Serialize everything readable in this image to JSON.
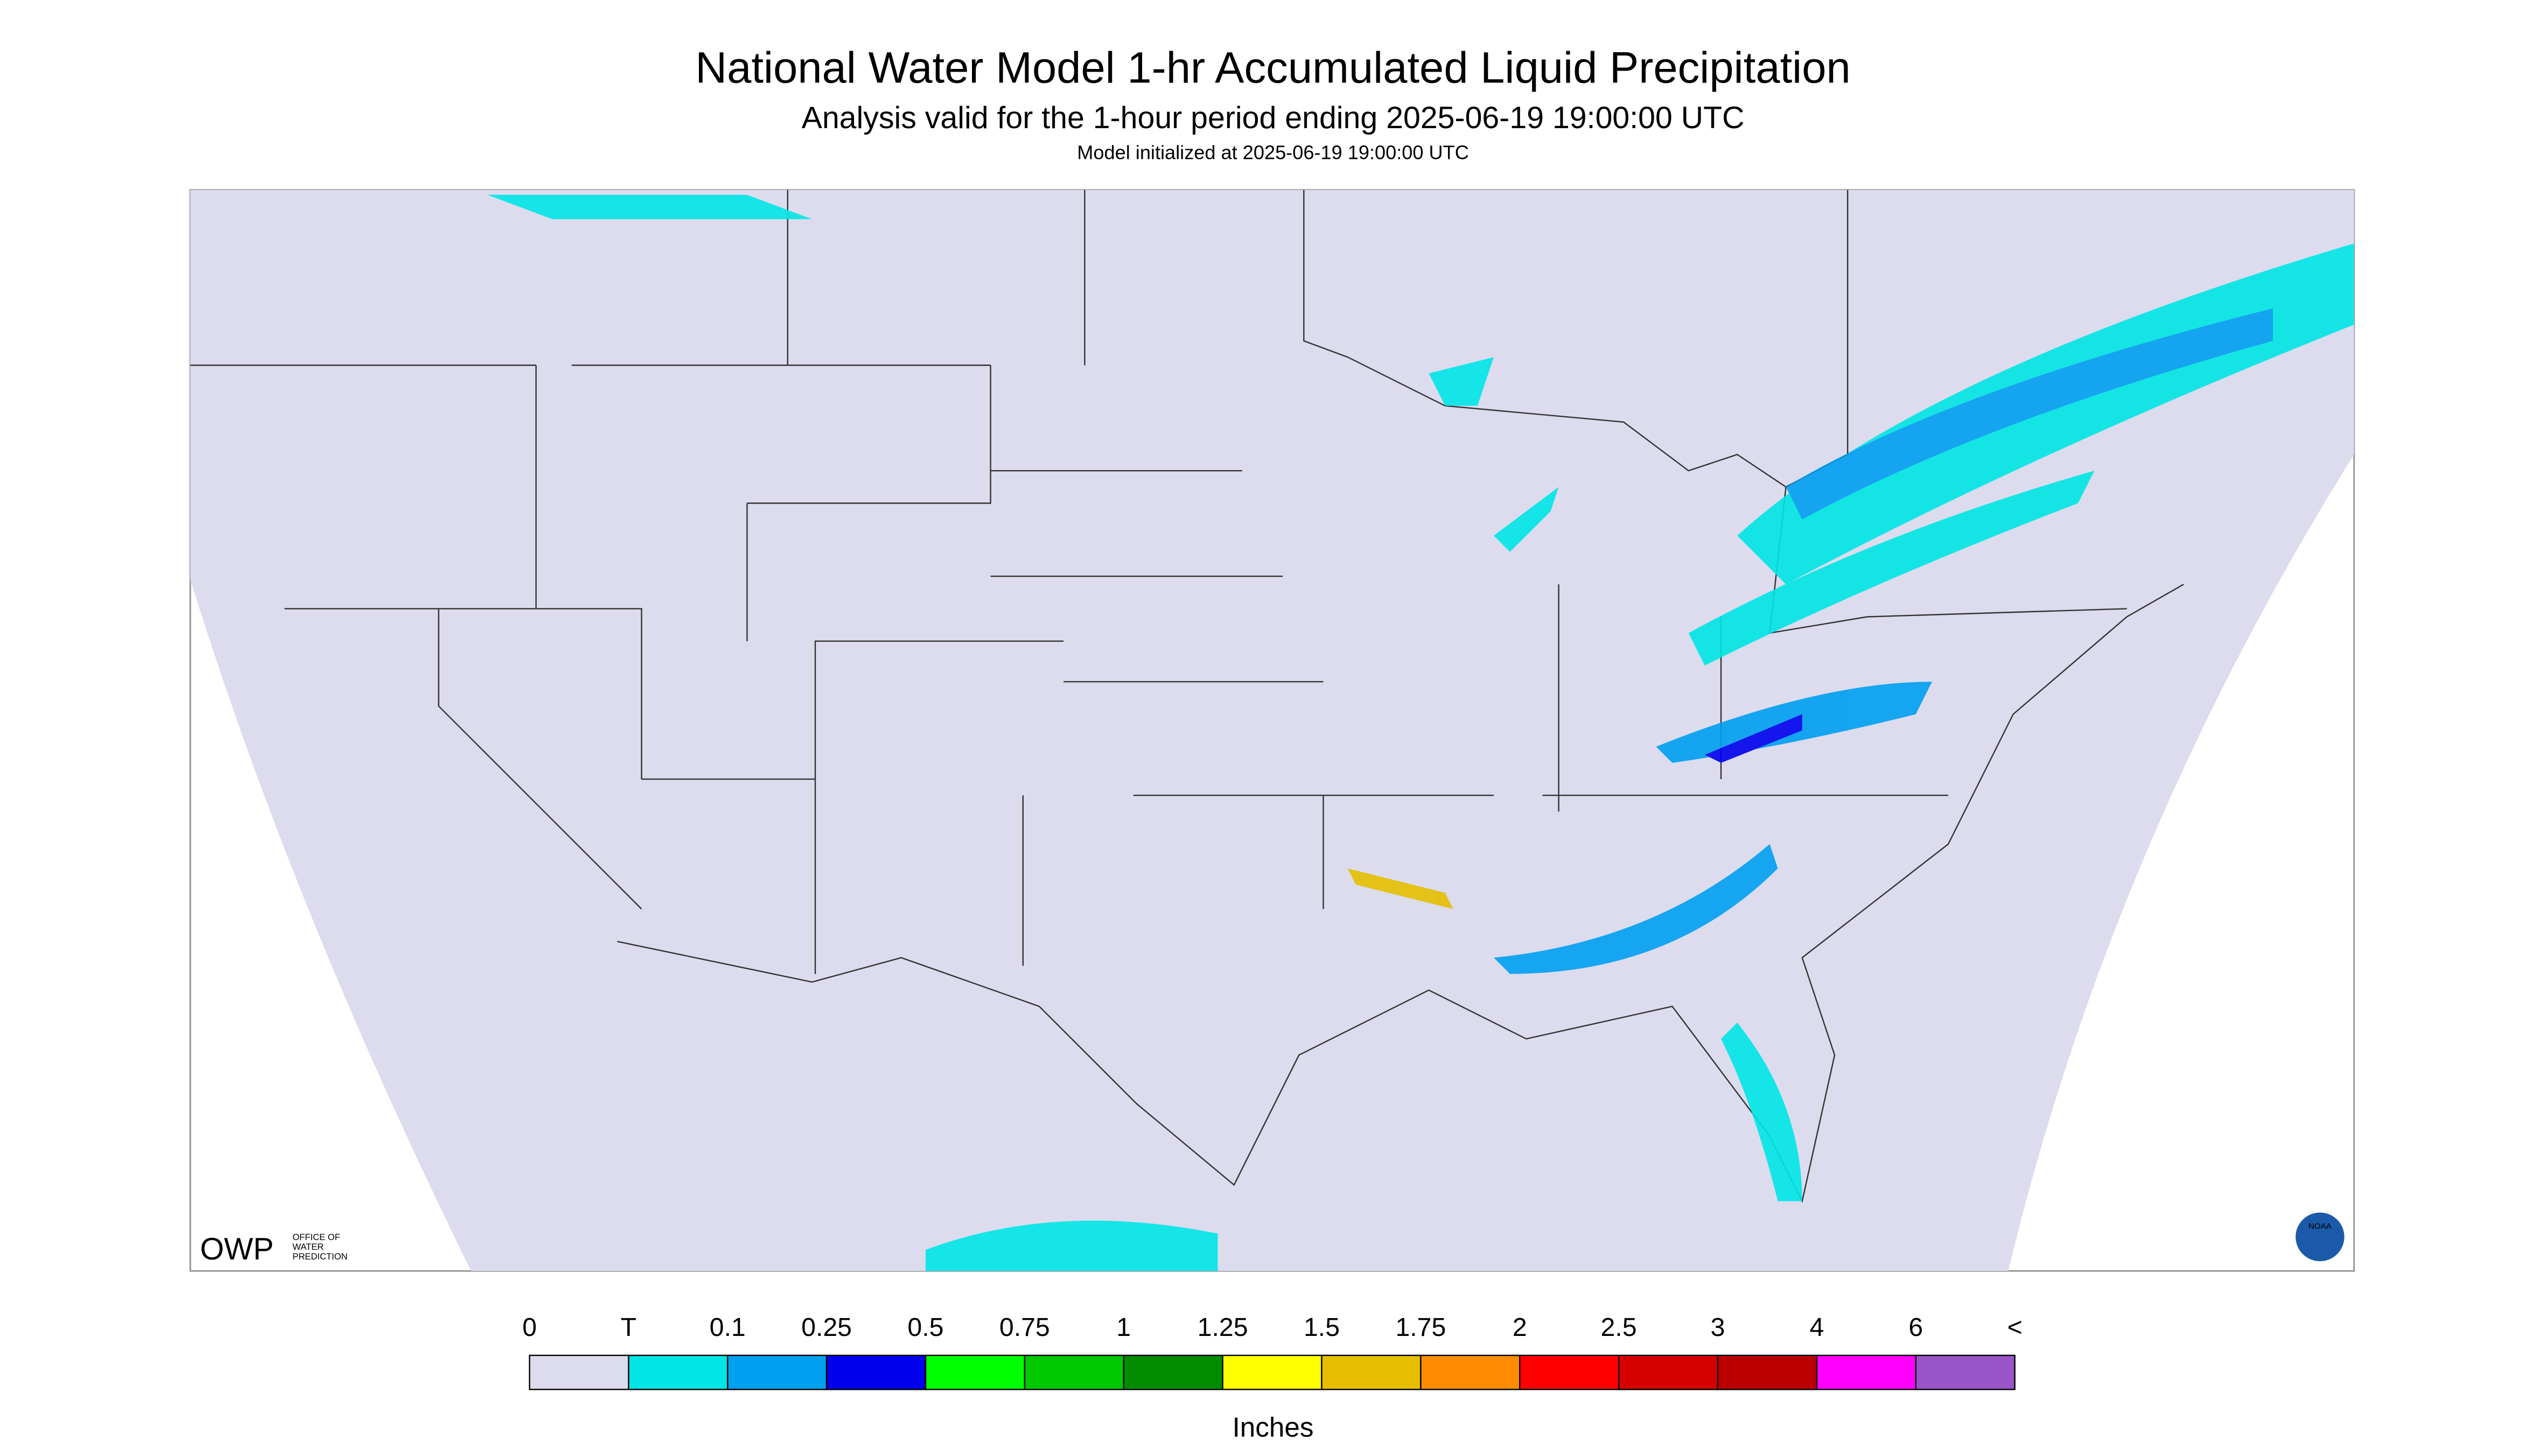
{
  "header": {
    "title": "National Water Model 1-hr Accumulated Liquid Precipitation",
    "subtitle": "Analysis valid for the 1-hour period ending 2025-06-19 19:00:00 UTC",
    "note": "Model initialized at 2025-06-19 19:00:00 UTC"
  },
  "logos": {
    "owp": "OWP",
    "owp_name": [
      "OFFICE OF",
      "WATER",
      "PREDICTION"
    ],
    "noaa": "NOAA"
  },
  "legend": {
    "labels": [
      "0",
      "T",
      "0.1",
      "0.25",
      "0.5",
      "0.75",
      "1",
      "1.25",
      "1.5",
      "1.75",
      "2",
      "2.5",
      "3",
      "4",
      "6",
      "<"
    ],
    "colors": [
      "#dcdcee",
      "#00e5e5",
      "#009ff0",
      "#0000ee",
      "#00ff00",
      "#00c800",
      "#008c00",
      "#ffff00",
      "#e6bf00",
      "#ff8c00",
      "#ff0000",
      "#d70000",
      "#bb0000",
      "#ff00ff",
      "#9954c8"
    ],
    "unit": "Inches"
  }
}
